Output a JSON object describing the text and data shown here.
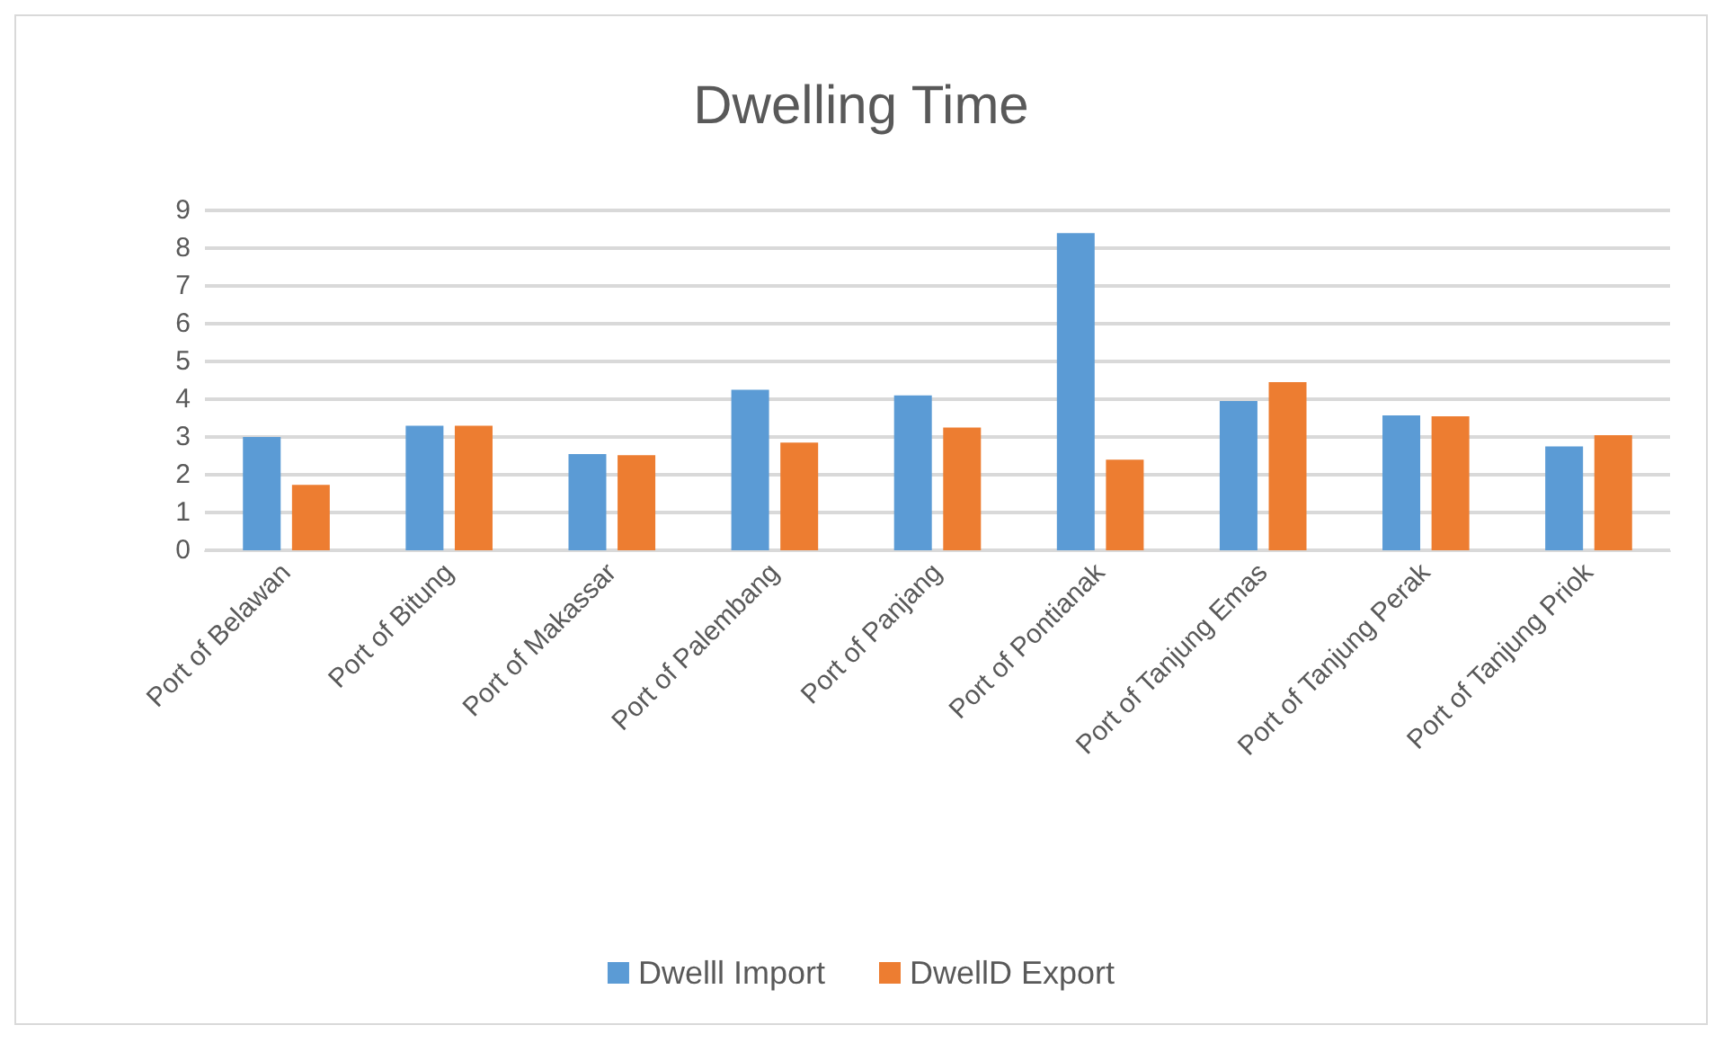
{
  "chart_data": {
    "type": "bar",
    "title": "Dwelling Time",
    "categories": [
      "Port of Belawan",
      "Port of Bitung",
      "Port of Makassar",
      "Port of Palembang",
      "Port of Panjang",
      "Port of Pontianak",
      "Port of Tanjung Emas",
      "Port of Tanjung Perak",
      "Port of Tanjung Priok"
    ],
    "series": [
      {
        "name": "Dwelll Import",
        "color": "#5b9bd5",
        "values": [
          3.0,
          3.3,
          2.55,
          4.25,
          4.1,
          8.4,
          3.95,
          3.57,
          2.75
        ]
      },
      {
        "name": "DwellD Export",
        "color": "#ed7d31",
        "values": [
          1.73,
          3.3,
          2.52,
          2.85,
          3.25,
          2.4,
          4.45,
          3.55,
          3.05
        ]
      }
    ],
    "ylim": [
      0,
      9
    ],
    "yticks": [
      0,
      1,
      2,
      3,
      4,
      5,
      6,
      7,
      8,
      9
    ],
    "grid": "y",
    "legend": "bottom"
  }
}
